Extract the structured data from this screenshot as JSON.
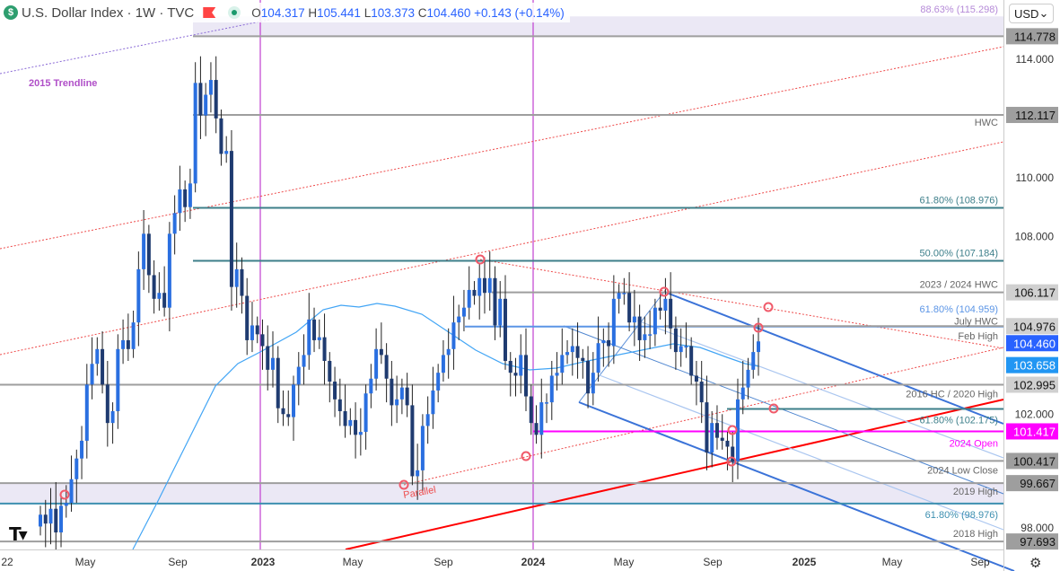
{
  "header": {
    "logo_symbol": "$",
    "title": "U.S. Dollar Index · 1W · TVC",
    "ohlc": {
      "o_label": "O",
      "open": "104.317",
      "h_label": "H",
      "high": "105.441",
      "l_label": "L",
      "low": "103.373",
      "c_label": "C",
      "close": "104.460",
      "change": "+0.143 (+0.14%)"
    },
    "currency": "USD"
  },
  "annotations": {
    "trendline_2015": "2015 Trendline",
    "parallel": "Parallel",
    "top_fib": "88.63% (115.298)"
  },
  "colors": {
    "up": "#2a6fe0",
    "down": "#1f3b70",
    "ma": "#42a5f5",
    "grey": "#9e9e9e",
    "teal": "#3d7f8a",
    "magenta": "#ff00ff",
    "red": "#ff0000",
    "channel": "#3b73d8"
  },
  "chart_data": {
    "type": "candlestick",
    "title": "U.S. Dollar Index · 1W · TVC",
    "interval": "1W",
    "ylim": [
      97.3,
      115.7
    ],
    "y_ticks": [
      "114.000",
      "110.000",
      "108.000",
      "102.000",
      "98.000"
    ],
    "x_ticks": [
      "22",
      "May",
      "Sep",
      "2023",
      "May",
      "Sep",
      "2024",
      "May",
      "Sep",
      "2025",
      "May",
      "Sep"
    ],
    "weekly_closes": [
      98.6,
      98.3,
      98.8,
      98.0,
      98.9,
      99.0,
      99.8,
      100.5,
      101.1,
      103.0,
      103.7,
      104.2,
      103.0,
      101.7,
      102.1,
      104.2,
      104.5,
      104.2,
      105.1,
      106.9,
      108.1,
      106.7,
      105.9,
      106.1,
      105.6,
      108.1,
      108.8,
      109.6,
      109.0,
      109.8,
      113.2,
      112.1,
      112.8,
      113.3,
      112.0,
      110.8,
      110.9,
      106.3,
      106.9,
      106.0,
      104.5,
      105.0,
      104.7,
      104.3,
      103.5,
      103.9,
      102.2,
      102.0,
      101.9,
      103.0,
      103.6,
      104.0,
      105.2,
      104.5,
      104.6,
      103.8,
      103.1,
      102.5,
      102.1,
      101.6,
      101.8,
      101.3,
      101.4,
      102.7,
      103.2,
      104.2,
      104.0,
      103.2,
      102.3,
      102.5,
      102.9,
      102.3,
      99.9,
      100.1,
      101.6,
      102.0,
      102.8,
      103.4,
      104.0,
      104.2,
      105.1,
      105.3,
      105.6,
      106.2,
      106.0,
      106.6,
      106.1,
      106.6,
      105.0,
      105.9,
      103.8,
      103.4,
      103.3,
      104.0,
      102.6,
      101.7,
      101.3,
      102.4,
      102.4,
      103.3,
      103.4,
      104.0,
      104.1,
      104.3,
      103.9,
      103.8,
      102.7,
      103.4,
      104.4,
      104.5,
      104.3,
      105.9,
      106.1,
      106.1,
      105.1,
      105.3,
      104.5,
      104.7,
      104.7,
      105.6,
      105.5,
      105.9,
      104.9,
      104.1,
      104.3,
      104.3,
      103.3,
      103.1,
      102.4,
      100.7,
      101.7,
      101.2,
      101.1,
      100.9,
      100.4,
      102.5,
      102.9,
      103.5,
      104.1,
      104.46
    ],
    "last_price": "104.460",
    "moving_average_value": "103.658",
    "levels": [
      {
        "label": "",
        "value": "114.778",
        "color": "#9e9e9e",
        "badge": true
      },
      {
        "label": "HWC",
        "value": "112.117",
        "color": "#9e9e9e",
        "badge": true
      },
      {
        "label": "61.80% (108.976)",
        "value": "108.976",
        "color": "#3d7f8a",
        "badge": false
      },
      {
        "label": "50.00% (107.184)",
        "value": "107.184",
        "color": "#3d7f8a",
        "badge": false
      },
      {
        "label": "2023 / 2024 HWC",
        "value": "106.117",
        "color": "#9e9e9e",
        "badge": true
      },
      {
        "label": "61.80% (104.959)",
        "value": "104.959",
        "color": "#5b95e6",
        "badge": false
      },
      {
        "label": "July HWC",
        "value": "104.976",
        "color": "#9e9e9e",
        "badge": true
      },
      {
        "label": "Feb High",
        "value": "104.9",
        "color": "#9e9e9e",
        "badge": false
      },
      {
        "label": "2016 HC / 2020 High",
        "value": "102.995",
        "color": "#9e9e9e",
        "badge": true
      },
      {
        "label": "61.80% (102.175)",
        "value": "102.175",
        "color": "#3d7f8a",
        "badge": false
      },
      {
        "label": "2024 Open",
        "value": "101.417",
        "color": "#ff00ff",
        "badge": true
      },
      {
        "label": "2024 Low Close",
        "value": "100.417",
        "color": "#9e9e9e",
        "badge": true
      },
      {
        "label": "2019 High",
        "value": "99.667",
        "color": "#9e9e9e",
        "badge": true
      },
      {
        "label": "61.80% (98.976)",
        "value": "98.976",
        "color": "#3d8fb0",
        "badge": false
      },
      {
        "label": "2018 High",
        "value": "97.693",
        "color": "#9e9e9e",
        "badge": true
      }
    ],
    "grid": false,
    "legend": "none"
  }
}
